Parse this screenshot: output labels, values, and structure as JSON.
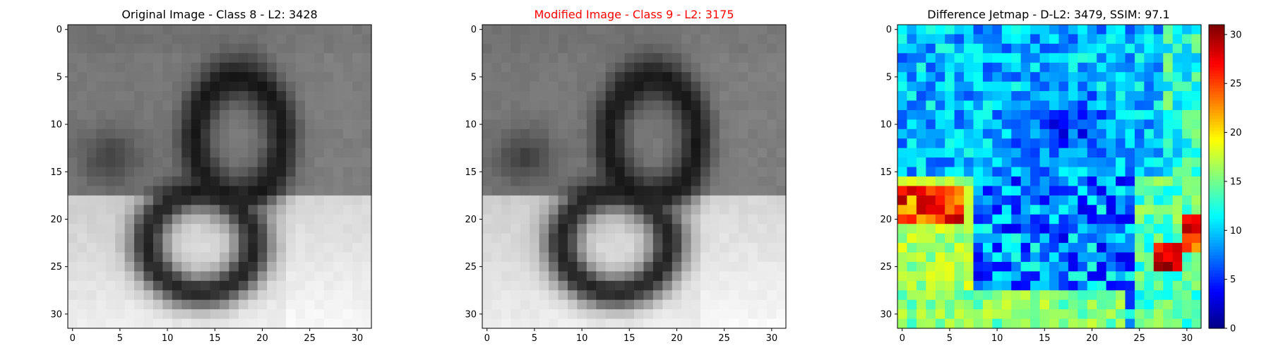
{
  "chart_data": [
    {
      "type": "heatmap",
      "title": "Original Image - Class 8 - L2: 3428",
      "colormap": "gray",
      "xticks": [
        "0",
        "5",
        "10",
        "15",
        "20",
        "25",
        "30"
      ],
      "yticks": [
        "0",
        "5",
        "10",
        "15",
        "20",
        "25",
        "30"
      ],
      "xlim": [
        -0.5,
        31.5
      ],
      "ylim": [
        31.5,
        -0.5
      ]
    },
    {
      "type": "heatmap",
      "title": "Modified Image - Class 9 - L2: 3175",
      "title_color": "#ff0000",
      "colormap": "gray",
      "xticks": [
        "0",
        "5",
        "10",
        "15",
        "20",
        "25",
        "30"
      ],
      "yticks": [
        "0",
        "5",
        "10",
        "15",
        "20",
        "25",
        "30"
      ],
      "xlim": [
        -0.5,
        31.5
      ],
      "ylim": [
        31.5,
        -0.5
      ]
    },
    {
      "type": "heatmap",
      "title": "Difference Jetmap - D-L2: 3479, SSIM: 97.1",
      "colormap": "jet",
      "xticks": [
        "0",
        "5",
        "10",
        "15",
        "20",
        "25",
        "30"
      ],
      "yticks": [
        "0",
        "5",
        "10",
        "15",
        "20",
        "25",
        "30"
      ],
      "xlim": [
        -0.5,
        31.5
      ],
      "ylim": [
        31.5,
        -0.5
      ],
      "colorbar": {
        "ticks": [
          "0",
          "5",
          "10",
          "15",
          "20",
          "25",
          "30"
        ],
        "range": [
          0,
          31
        ]
      }
    }
  ]
}
